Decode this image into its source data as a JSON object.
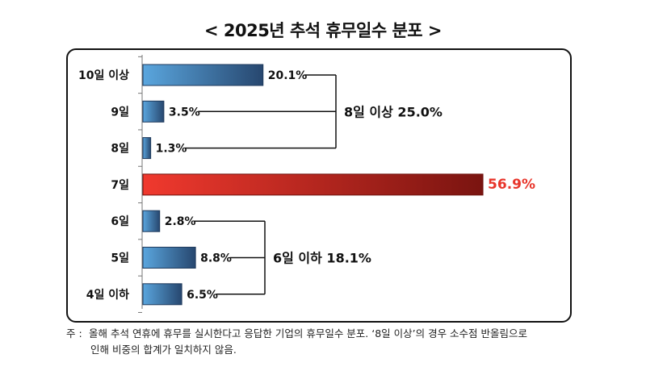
{
  "title": "< 2025년 추석 휴무일수 분포 >",
  "chart_data": {
    "type": "bar",
    "orientation": "horizontal",
    "categories": [
      "10일 이상",
      "9일",
      "8일",
      "7일",
      "6일",
      "5일",
      "4일 이하"
    ],
    "values": [
      20.1,
      3.5,
      1.3,
      56.9,
      2.8,
      8.8,
      6.5
    ],
    "value_labels": [
      "20.1%",
      "3.5%",
      "1.3%",
      "56.9%",
      "2.8%",
      "8.8%",
      "6.5%"
    ],
    "highlight_index": 3,
    "colors": {
      "bar": "#4a90c8",
      "bar_dark": "#24466e",
      "highlight": "#e8352b",
      "highlight_dark": "#7a1410",
      "highlight_text": "#e8352b"
    },
    "groups": [
      {
        "label": "8일 이상 25.0%",
        "indices": [
          0,
          1,
          2
        ]
      },
      {
        "label": "6일 이하 18.1%",
        "indices": [
          4,
          5,
          6
        ]
      }
    ]
  },
  "note": {
    "mark": "주 :",
    "line1": "올해 추석 연휴에 휴무를 실시한다고 응답한 기업의 휴무일수 분포. ‘8일 이상’의 경우 소수점 반올림으로",
    "line2": "인해 비중의 합계가 일치하지 않음."
  }
}
